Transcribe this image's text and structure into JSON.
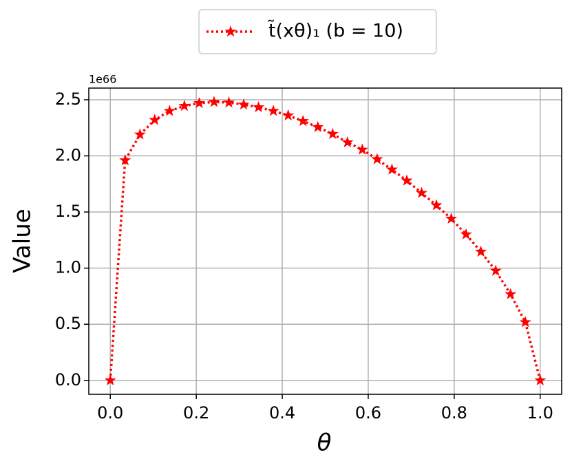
{
  "chart_data": {
    "type": "line",
    "x_label": "θ",
    "y_label": "Value",
    "y_offset_label": "1e66",
    "x": [
      0,
      0.0345,
      0.069,
      0.1034,
      0.1379,
      0.1724,
      0.2069,
      0.2414,
      0.2759,
      0.3103,
      0.3448,
      0.3793,
      0.4138,
      0.4483,
      0.4828,
      0.5172,
      0.5517,
      0.5862,
      0.6207,
      0.6552,
      0.6897,
      0.7241,
      0.7586,
      0.7931,
      0.8276,
      0.8621,
      0.8966,
      0.931,
      0.9655,
      1
    ],
    "series": [
      {
        "name": "t̃(xθ)₁ (b = 10)",
        "color": "#ff0000",
        "values": [
          0,
          1.96,
          2.19,
          2.32,
          2.4,
          2.445,
          2.47,
          2.48,
          2.475,
          2.457,
          2.433,
          2.4,
          2.36,
          2.31,
          2.256,
          2.195,
          2.12,
          2.055,
          1.97,
          1.878,
          1.78,
          1.67,
          1.56,
          1.44,
          1.3,
          1.146,
          0.976,
          0.768,
          0.518,
          0
        ]
      }
    ],
    "xlim": [
      -0.05,
      1.05
    ],
    "ylim": [
      -0.124,
      2.604
    ],
    "xticks": [
      {
        "value": 0,
        "label": "0.0"
      },
      0.2,
      0.4,
      0.6,
      0.8,
      {
        "value": 1,
        "label": "1.0"
      }
    ],
    "yticks": [
      {
        "value": 0,
        "label": "0.0"
      },
      0.5,
      {
        "value": 1,
        "label": "1.0"
      },
      1.5,
      {
        "value": 2,
        "label": "2.0"
      },
      2.5
    ],
    "grid": true,
    "legend": "top"
  }
}
